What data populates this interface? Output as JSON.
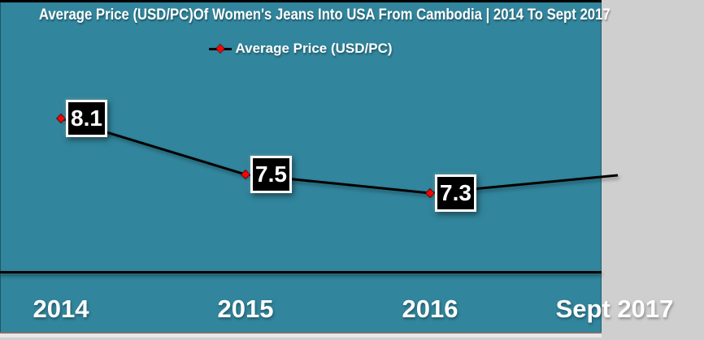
{
  "title": "Average Price (USD/PC)Of Women's Jeans Into USA From Cambodia | 2014 To Sept 2017",
  "legend": {
    "marker_icon": "red-diamond-on-line-icon",
    "label": "Average Price (USD/PC)"
  },
  "chart_data": {
    "type": "line",
    "title": "Average Price (USD/PC)Of Women's Jeans Into USA From Cambodia | 2014 To Sept 2017",
    "categories": [
      "2014",
      "2015",
      "2016",
      "Sept 2017"
    ],
    "series": [
      {
        "name": "Average Price (USD/PC)",
        "values": [
          8.1,
          7.5,
          7.3,
          null
        ]
      }
    ],
    "data_labels": [
      "8.1",
      "7.5",
      "7.3"
    ],
    "marker": "diamond",
    "grid": false,
    "y_axis_visible": false,
    "legend_position": "top-center",
    "ylim": [
      6.5,
      9.0
    ],
    "clipped_right": "line continues upward past right edge; Sept 2017 point and its label are cut off"
  },
  "colors": {
    "background": "#31859C",
    "top_border": "#000000",
    "title_text": "#FFFFFF",
    "axis_text": "#FFFFFF",
    "line": "#000000",
    "marker_fill": "#FF0000",
    "data_label_bg": "#000000",
    "data_label_text": "#FFFFFF",
    "data_label_border": "#FFFFFF",
    "axis_line": "#000000",
    "bottom_strip": "#E8E8E8"
  }
}
